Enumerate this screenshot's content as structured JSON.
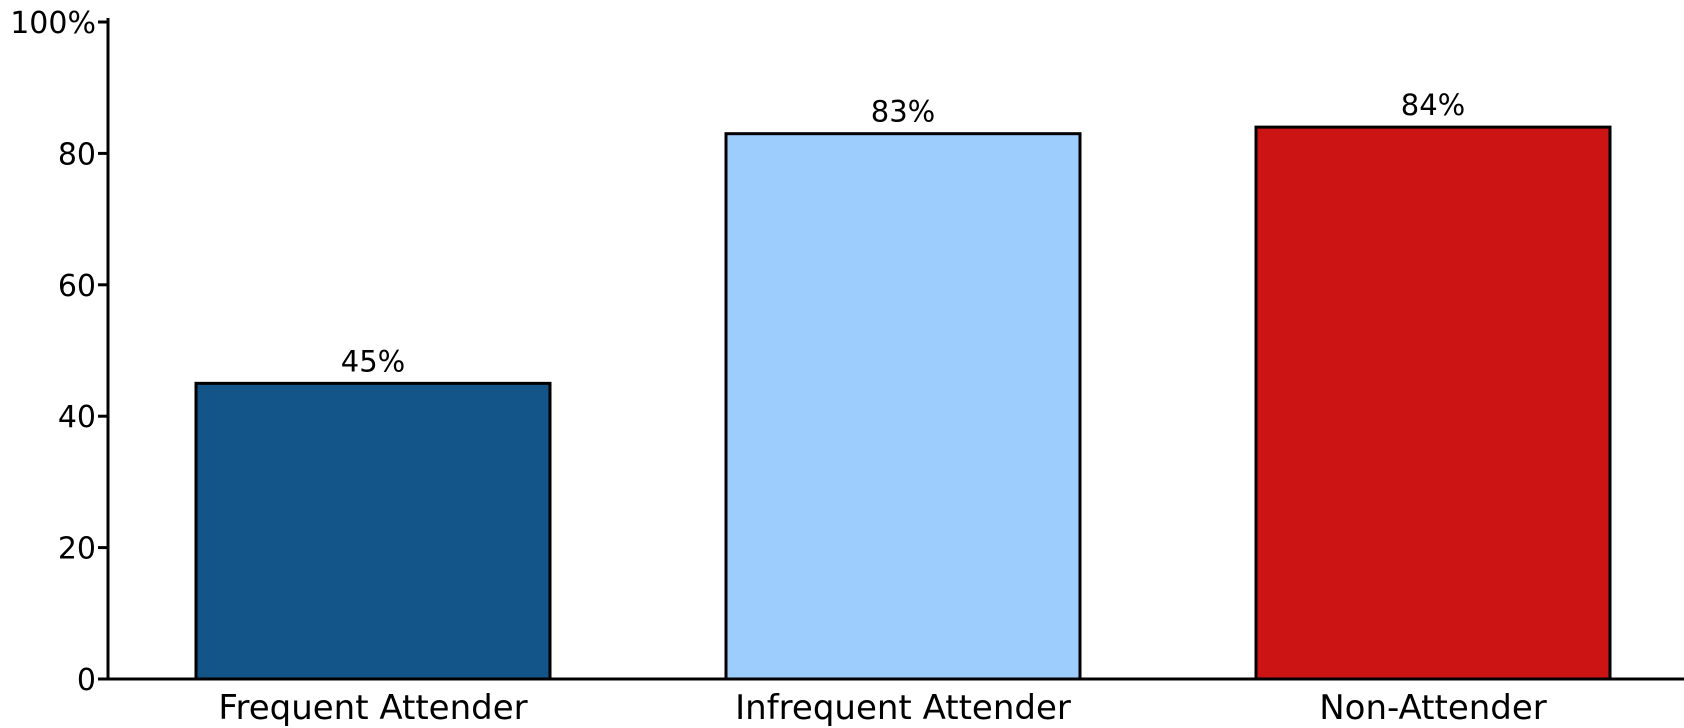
{
  "chart_data": {
    "type": "bar",
    "categories": [
      "Frequent Attender",
      "Infrequent Attender",
      "Non-Attender"
    ],
    "values": [
      45,
      83,
      84
    ],
    "data_labels": [
      "45%",
      "83%",
      "84%"
    ],
    "colors": [
      "#135589",
      "#9ccdfd",
      "#cc1414"
    ],
    "ylim": [
      0,
      100
    ],
    "yticks": [
      0,
      20,
      40,
      60,
      80,
      100
    ],
    "ytick_labels": [
      "0",
      "20",
      "40",
      "60",
      "80",
      "100%"
    ],
    "grid": false,
    "legend": "none"
  }
}
